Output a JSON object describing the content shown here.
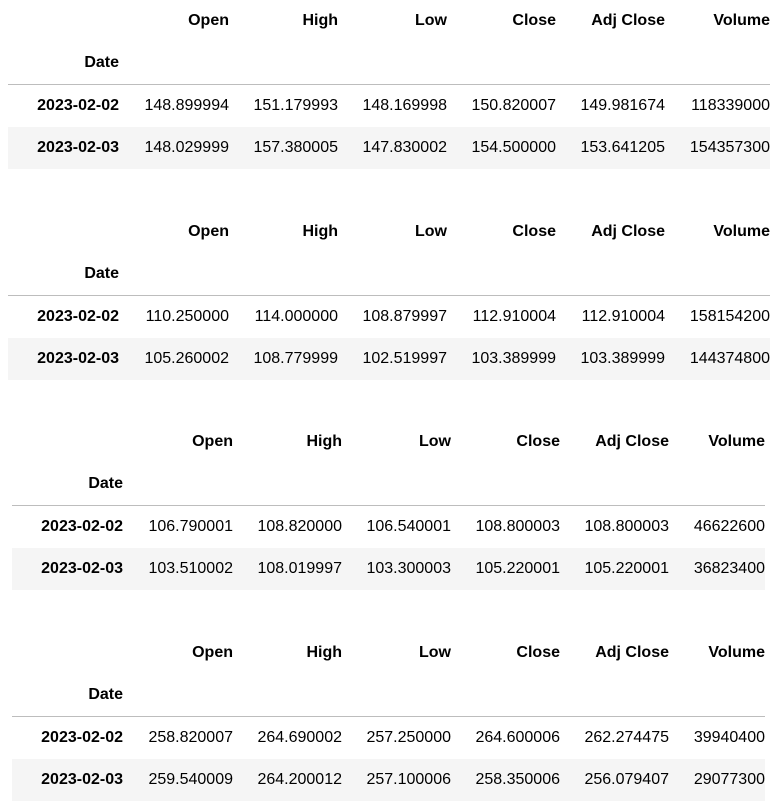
{
  "tables": [
    {
      "columns": [
        "Open",
        "High",
        "Low",
        "Close",
        "Adj Close",
        "Volume"
      ],
      "index_name": "Date",
      "rows": [
        {
          "date": "2023-02-02",
          "values": [
            "148.899994",
            "151.179993",
            "148.169998",
            "150.820007",
            "149.981674",
            "118339000"
          ]
        },
        {
          "date": "2023-02-03",
          "values": [
            "148.029999",
            "157.380005",
            "147.830002",
            "154.500000",
            "153.641205",
            "154357300"
          ]
        }
      ]
    },
    {
      "columns": [
        "Open",
        "High",
        "Low",
        "Close",
        "Adj Close",
        "Volume"
      ],
      "index_name": "Date",
      "rows": [
        {
          "date": "2023-02-02",
          "values": [
            "110.250000",
            "114.000000",
            "108.879997",
            "112.910004",
            "112.910004",
            "158154200"
          ]
        },
        {
          "date": "2023-02-03",
          "values": [
            "105.260002",
            "108.779999",
            "102.519997",
            "103.389999",
            "103.389999",
            "144374800"
          ]
        }
      ]
    },
    {
      "columns": [
        "Open",
        "High",
        "Low",
        "Close",
        "Adj Close",
        "Volume"
      ],
      "index_name": "Date",
      "rows": [
        {
          "date": "2023-02-02",
          "values": [
            "106.790001",
            "108.820000",
            "106.540001",
            "108.800003",
            "108.800003",
            "46622600"
          ]
        },
        {
          "date": "2023-02-03",
          "values": [
            "103.510002",
            "108.019997",
            "103.300003",
            "105.220001",
            "105.220001",
            "36823400"
          ]
        }
      ]
    },
    {
      "columns": [
        "Open",
        "High",
        "Low",
        "Close",
        "Adj Close",
        "Volume"
      ],
      "index_name": "Date",
      "rows": [
        {
          "date": "2023-02-02",
          "values": [
            "258.820007",
            "264.690002",
            "257.250000",
            "264.600006",
            "262.274475",
            "39940400"
          ]
        },
        {
          "date": "2023-02-03",
          "values": [
            "259.540009",
            "264.200012",
            "257.100006",
            "258.350006",
            "256.079407",
            "29077300"
          ]
        }
      ]
    }
  ],
  "colors": {
    "stripe": "#f5f5f5",
    "rule": "#bdbdbd",
    "text": "#000000"
  }
}
